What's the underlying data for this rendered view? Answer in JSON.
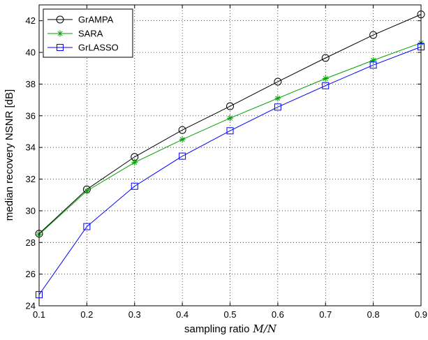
{
  "chart_data": {
    "type": "line",
    "title": "",
    "xlabel": "sampling ratio",
    "xlabel_math": "M/N",
    "ylabel": "median recovery NSNR [dB]",
    "xlim": [
      0.1,
      0.9
    ],
    "ylim": [
      24,
      43
    ],
    "xticks": [
      "0.1",
      "0.2",
      "0.3",
      "0.4",
      "0.5",
      "0.6",
      "0.7",
      "0.8",
      "0.9"
    ],
    "yticks": [
      "24",
      "26",
      "28",
      "30",
      "32",
      "34",
      "36",
      "38",
      "40",
      "42"
    ],
    "grid": true,
    "legend_position": "top-left",
    "x": [
      0.1,
      0.2,
      0.3,
      0.4,
      0.5,
      0.6,
      0.7,
      0.8,
      0.9
    ],
    "series": [
      {
        "name": "GrAMPA",
        "marker": "circle",
        "color": "#000000",
        "values": [
          28.55,
          31.35,
          33.4,
          35.1,
          36.6,
          38.15,
          39.65,
          41.1,
          42.4
        ]
      },
      {
        "name": "SARA",
        "marker": "star",
        "color": "#00a000",
        "values": [
          28.5,
          31.25,
          33.05,
          34.5,
          35.85,
          37.1,
          38.35,
          39.5,
          40.6
        ]
      },
      {
        "name": "GrLASSO",
        "marker": "square",
        "color": "#0000ff",
        "values": [
          24.7,
          29.0,
          31.55,
          33.45,
          35.05,
          36.55,
          37.9,
          39.2,
          40.35
        ]
      }
    ]
  }
}
